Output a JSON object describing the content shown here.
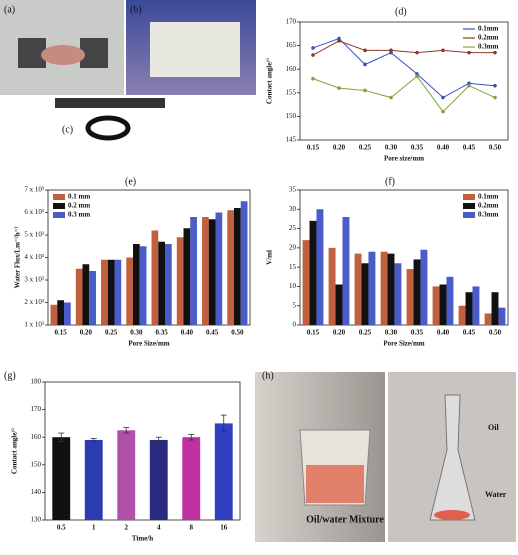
{
  "panel_labels": [
    "(a)",
    "(b)",
    "(c)",
    "(d)",
    "(e)",
    "(f)",
    "(g)",
    "(h)"
  ],
  "photo_texts": {
    "mixture": "Oil/water Mixture",
    "oil": "Oil",
    "water": "Water"
  },
  "chart_data": [
    {
      "type": "line",
      "ylabel": "Contact angle/°",
      "xlabel": "Pore size/mm",
      "categories": [
        "0.15",
        "0.20",
        "0.25",
        "0.30",
        "0.35",
        "0.40",
        "0.45",
        "0.50"
      ],
      "series": [
        {
          "name": "0.1mm",
          "color": "#3a4fc4",
          "values": [
            164.5,
            166.5,
            161,
            163.5,
            159,
            154,
            157,
            156.5
          ]
        },
        {
          "name": "0.2mm",
          "color": "#8b3a2a",
          "values": [
            163,
            166,
            164,
            164,
            163.5,
            164,
            163.5,
            163.5
          ]
        },
        {
          "name": "0.3mm",
          "color": "#8aa040",
          "values": [
            158,
            156,
            155.5,
            154,
            158.5,
            151,
            156.5,
            154
          ]
        }
      ],
      "ylim": [
        145,
        170
      ],
      "yticks": [
        145,
        150,
        155,
        160,
        165,
        170
      ],
      "legend": "upper-right"
    },
    {
      "type": "bar",
      "ylabel": "Water Flux/Lm⁻²h⁻¹",
      "xlabel": "Pore Size/mm",
      "categories": [
        "0.15",
        "0.20",
        "0.25",
        "0.30",
        "0.35",
        "0.40",
        "0.45",
        "0.50"
      ],
      "series": [
        {
          "name": "0.1 mm",
          "color": "#c0603f",
          "values": [
            1900,
            3500,
            3900,
            4000,
            5200,
            4900,
            5800,
            6100
          ]
        },
        {
          "name": "0.2 mm",
          "color": "#111111",
          "values": [
            2100,
            3700,
            3900,
            4600,
            4700,
            5300,
            5700,
            6200
          ]
        },
        {
          "name": "0.3 mm",
          "color": "#4a5cc8",
          "values": [
            2000,
            3400,
            3900,
            4500,
            4600,
            5800,
            6000,
            6500
          ]
        }
      ],
      "ylim": [
        1000,
        7000
      ],
      "yticks": [
        {
          "value": 1000,
          "label": "1 x 10³"
        },
        {
          "value": 2000,
          "label": "2 x 10³"
        },
        {
          "value": 3000,
          "label": "3 x 10³"
        },
        {
          "value": 4000,
          "label": "4 x 10³"
        },
        {
          "value": 5000,
          "label": "5 x 10³"
        },
        {
          "value": 6000,
          "label": "6 x 10³"
        },
        {
          "value": 7000,
          "label": "7 x 10³"
        }
      ],
      "legend": "upper-left"
    },
    {
      "type": "bar",
      "ylabel": "V/ml",
      "xlabel": "Pore Size/mm",
      "categories": [
        "0.15",
        "0.20",
        "0.25",
        "0.30",
        "0.35",
        "0.40",
        "0.45",
        "0.50"
      ],
      "series": [
        {
          "name": "0.1mm",
          "color": "#c0603f",
          "values": [
            22,
            20,
            18.5,
            19,
            14.5,
            10,
            5,
            3
          ]
        },
        {
          "name": "0.2mm",
          "color": "#111111",
          "values": [
            27,
            10.5,
            16,
            18.5,
            17,
            10.5,
            8.5,
            8.5
          ]
        },
        {
          "name": "0.3mm",
          "color": "#4a5cc8",
          "values": [
            30,
            28,
            19,
            16,
            19.5,
            12.5,
            10,
            4.5
          ]
        }
      ],
      "ylim": [
        0,
        35
      ],
      "yticks": [
        0,
        5,
        10,
        15,
        20,
        25,
        30,
        35
      ],
      "legend": "upper-right"
    },
    {
      "type": "bar",
      "ylabel": "Contact angle/°",
      "xlabel": "Time/h",
      "categories": [
        "0.5",
        "1",
        "2",
        "4",
        "8",
        "16"
      ],
      "values": [
        160,
        159,
        162.5,
        159,
        160,
        165
      ],
      "errors": [
        1.5,
        0.5,
        1,
        1,
        1,
        3
      ],
      "colors": [
        "#111111",
        "#2a3cb0",
        "#b050a8",
        "#2a2a80",
        "#c030a0",
        "#3040c0"
      ],
      "ylim": [
        130,
        180
      ],
      "yticks": [
        130,
        140,
        150,
        160,
        170,
        180
      ]
    }
  ]
}
